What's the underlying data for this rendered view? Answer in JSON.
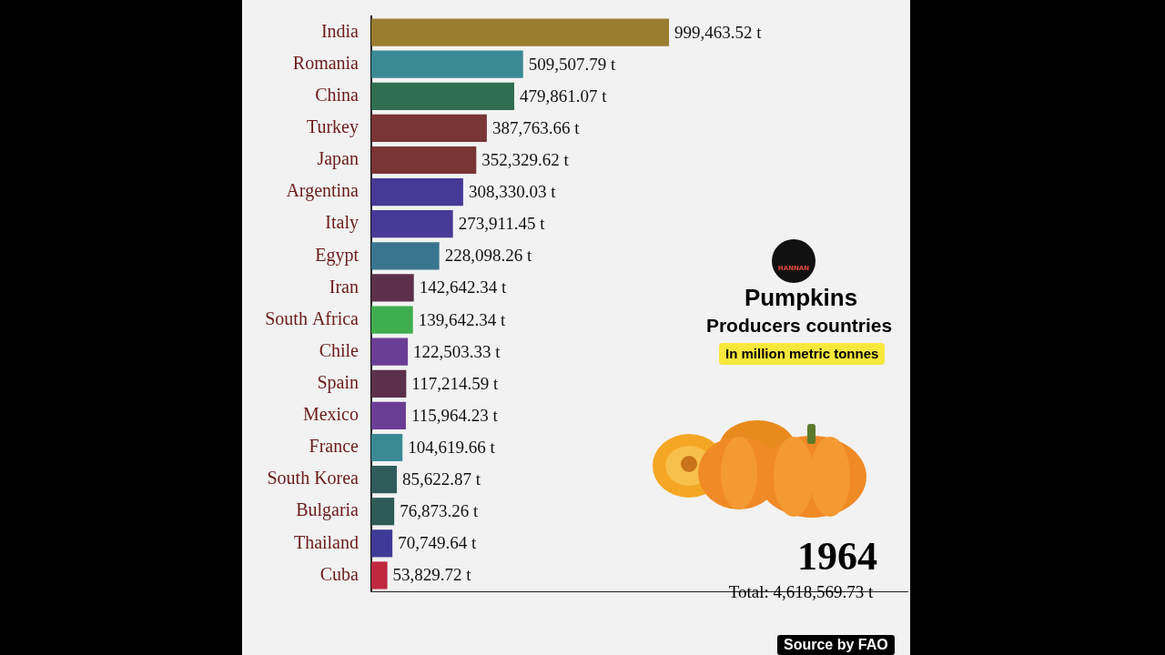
{
  "chart_data": {
    "type": "bar",
    "orientation": "horizontal",
    "title": "Pumpkins",
    "subtitle": "Producers countries",
    "categories": [
      "India",
      "Romania",
      "China",
      "Turkey",
      "Japan",
      "Argentina",
      "Italy",
      "Egypt",
      "Iran",
      "South Africa",
      "Chile",
      "Spain",
      "Mexico",
      "France",
      "South Korea",
      "Bulgaria",
      "Thailand",
      "Cuba"
    ],
    "values": [
      999463.52,
      509507.79,
      479861.07,
      387763.66,
      352329.62,
      308330.03,
      273911.45,
      228098.26,
      142642.34,
      139642.34,
      122503.33,
      117214.59,
      115964.23,
      104619.66,
      85622.87,
      76873.26,
      70749.64,
      53829.72
    ],
    "value_labels": [
      "999,463.52 t",
      "509,507.79 t",
      "479,861.07 t",
      "387,763.66 t",
      "352,329.62 t",
      "308,330.03 t",
      "273,911.45 t",
      "228,098.26 t",
      "142,642.34 t",
      "139,642.34 t",
      "122,503.33 t",
      "117,214.59 t",
      "115,964.23 t",
      "104,619.66 t",
      "85,622.87 t",
      "76,873.26 t",
      "70,749.64 t",
      "53,829.72 t"
    ],
    "colors": [
      "#9a7d2e",
      "#3a8a93",
      "#2f6e50",
      "#7a3535",
      "#7a3535",
      "#473a97",
      "#473a97",
      "#3a7590",
      "#5b3048",
      "#3fae4f",
      "#6b3e95",
      "#5b3048",
      "#6b3e95",
      "#3a8a93",
      "#2f5b5b",
      "#2e5b55",
      "#3f3a97",
      "#c0283f"
    ],
    "xlim": [
      0,
      1800000
    ],
    "tick_labels": "y",
    "data_labels": true,
    "grid": false
  },
  "panel": {
    "logo": "HANNAN",
    "unit": "In million metric tonnes",
    "year": "1964",
    "total": "Total: 4,618,569.73 t",
    "source": "Source by FAO"
  }
}
